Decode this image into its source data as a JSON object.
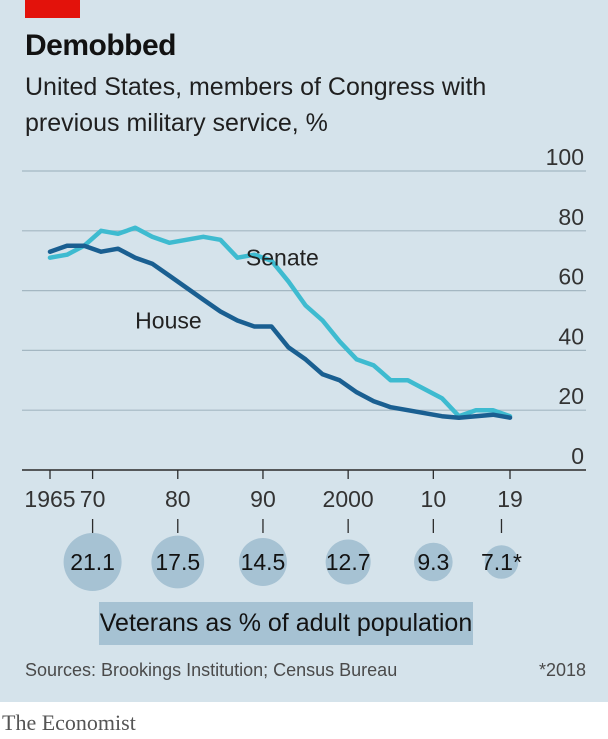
{
  "title": "Demobbed",
  "subtitle": "United States, members of Congress with previous military service, %",
  "chart_data": {
    "type": "line",
    "title": "Demobbed",
    "subtitle": "United States, members of Congress with previous military service, %",
    "xlim": [
      1965,
      2019
    ],
    "ylim": [
      0,
      100
    ],
    "yticks": [
      0,
      20,
      40,
      60,
      80,
      100
    ],
    "xticks": [
      {
        "value": 1965,
        "label": "1965"
      },
      {
        "value": 1970,
        "label": "70"
      },
      {
        "value": 1980,
        "label": "80"
      },
      {
        "value": 1990,
        "label": "90"
      },
      {
        "value": 2000,
        "label": "2000"
      },
      {
        "value": 2010,
        "label": "10"
      },
      {
        "value": 2019,
        "label": "19"
      }
    ],
    "grid": true,
    "series": [
      {
        "name": "Senate",
        "color": "#3ebbd0",
        "x": [
          1965,
          1967,
          1969,
          1971,
          1973,
          1975,
          1977,
          1979,
          1981,
          1983,
          1985,
          1987,
          1989,
          1991,
          1993,
          1995,
          1997,
          1999,
          2001,
          2003,
          2005,
          2007,
          2009,
          2011,
          2013,
          2015,
          2017,
          2019
        ],
        "y": [
          71,
          72,
          75,
          80,
          79,
          81,
          78,
          76,
          77,
          78,
          77,
          71,
          72,
          70,
          63,
          55,
          50,
          43,
          37,
          35,
          30,
          30,
          27,
          24,
          18,
          20,
          20,
          18
        ]
      },
      {
        "name": "House",
        "color": "#1a5f91",
        "x": [
          1965,
          1967,
          1969,
          1971,
          1973,
          1975,
          1977,
          1979,
          1981,
          1983,
          1985,
          1987,
          1989,
          1991,
          1993,
          1995,
          1997,
          1999,
          2001,
          2003,
          2005,
          2007,
          2009,
          2011,
          2013,
          2015,
          2017,
          2019
        ],
        "y": [
          73,
          75,
          75,
          73,
          74,
          71,
          69,
          65,
          61,
          57,
          53,
          50,
          48,
          48,
          41,
          37,
          32,
          30,
          26,
          23,
          21,
          20,
          19,
          18,
          17.5,
          18,
          18.5,
          17.5
        ]
      }
    ],
    "annotations": [
      {
        "text": "Senate",
        "x": 1988,
        "y": 71
      },
      {
        "text": "House",
        "x": 1975,
        "y": 50
      }
    ],
    "bubbles": {
      "label": "Veterans as % of adult population",
      "footnote": "*2018",
      "items": [
        {
          "x": 1970,
          "value": 21.1,
          "label": "21.1"
        },
        {
          "x": 1980,
          "value": 17.5,
          "label": "17.5"
        },
        {
          "x": 1990,
          "value": 14.5,
          "label": "14.5"
        },
        {
          "x": 2000,
          "value": 12.7,
          "label": "12.7"
        },
        {
          "x": 2010,
          "value": 9.3,
          "label": "9.3"
        },
        {
          "x": 2018,
          "value": 7.1,
          "label": "7.1*"
        }
      ]
    }
  },
  "caption": "Veterans as % of adult population",
  "source": "Sources: Brookings Institution; Census Bureau",
  "footnote": "*2018",
  "brand": "The Economist",
  "colors": {
    "background": "#d5e3eb",
    "accent": "#e3120b",
    "senate": "#3ebbd0",
    "house": "#1a5f91",
    "bubble": "#a6c2d3"
  }
}
